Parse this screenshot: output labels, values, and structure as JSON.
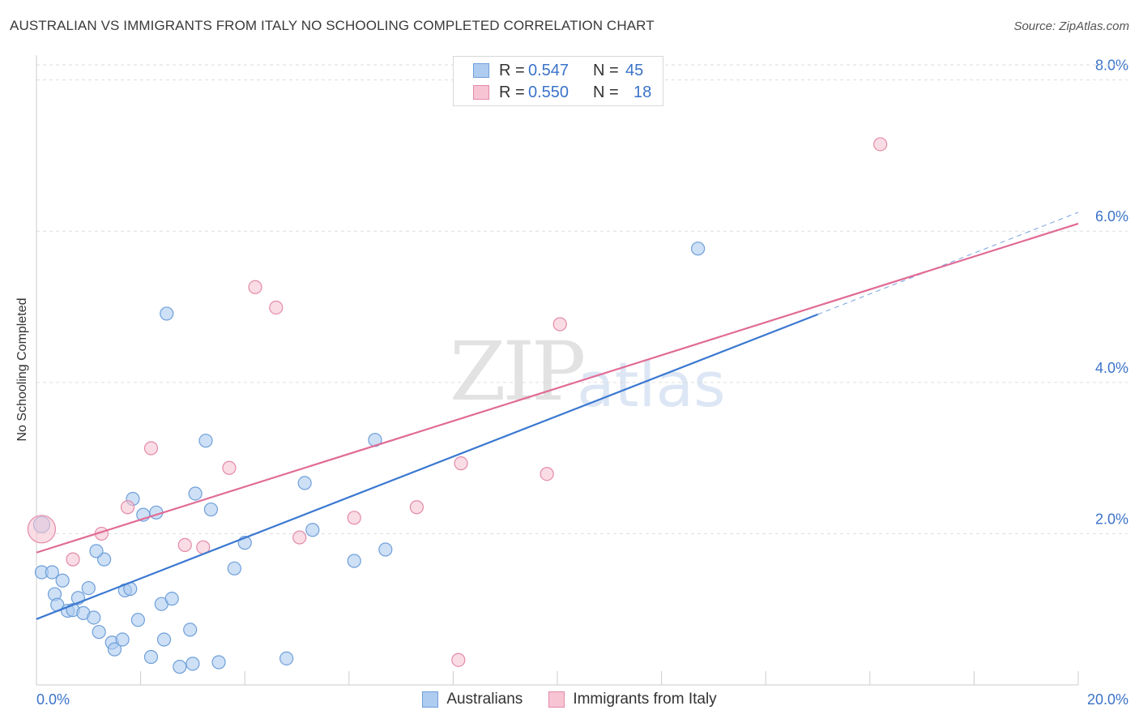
{
  "title": "AUSTRALIAN VS IMMIGRANTS FROM ITALY NO SCHOOLING COMPLETED CORRELATION CHART",
  "source": "Source: ZipAtlas.com",
  "watermark": {
    "zip": "ZIP",
    "atlas": "atlas"
  },
  "legend": {
    "rows": [
      {
        "r_label": "R =",
        "r_value": "0.547",
        "n_label": "N =",
        "n_value": "45",
        "color": "#aecbf0",
        "border": "#6e9fd9"
      },
      {
        "r_label": "R =",
        "r_value": "0.550",
        "n_label": "N =",
        "n_value": "18",
        "color": "#f7c4d3",
        "border": "#e38aa7"
      }
    ]
  },
  "bottom_legend": [
    {
      "label": "Australians",
      "color": "#aecbf0",
      "border": "#6e9fd9"
    },
    {
      "label": "Immigrants from Italy",
      "color": "#f7c4d3",
      "border": "#e38aa7"
    }
  ],
  "chart_data": {
    "type": "scatter",
    "title": "AUSTRALIAN VS IMMIGRANTS FROM ITALY NO SCHOOLING COMPLETED CORRELATION CHART",
    "xlabel": "",
    "ylabel": "No Schooling Completed",
    "xlim": [
      0,
      20
    ],
    "ylim": [
      0,
      8.2
    ],
    "x_tick_labels": [
      "0.0%",
      "20.0%"
    ],
    "y_ticks": [
      2,
      4,
      6,
      8
    ],
    "y_tick_labels": [
      "2.0%",
      "4.0%",
      "6.0%",
      "8.0%"
    ],
    "series": [
      {
        "name": "Australians",
        "color": "#6e9fd9",
        "fill": "#aecbf0",
        "points": [
          [
            0.1,
            2.12
          ],
          [
            0.1,
            1.49
          ],
          [
            0.3,
            1.49
          ],
          [
            0.5,
            1.38
          ],
          [
            0.35,
            1.2
          ],
          [
            0.4,
            1.06
          ],
          [
            0.6,
            0.98
          ],
          [
            0.7,
            0.99
          ],
          [
            0.8,
            1.15
          ],
          [
            0.9,
            0.95
          ],
          [
            1.0,
            1.28
          ],
          [
            1.1,
            0.89
          ],
          [
            1.2,
            0.7
          ],
          [
            1.3,
            1.66
          ],
          [
            1.15,
            1.77
          ],
          [
            1.45,
            0.56
          ],
          [
            1.5,
            0.47
          ],
          [
            1.65,
            0.6
          ],
          [
            1.7,
            1.25
          ],
          [
            1.8,
            1.27
          ],
          [
            1.85,
            2.46
          ],
          [
            1.95,
            0.86
          ],
          [
            2.05,
            2.25
          ],
          [
            2.2,
            0.37
          ],
          [
            2.3,
            2.28
          ],
          [
            2.4,
            1.07
          ],
          [
            2.45,
            0.6
          ],
          [
            2.6,
            1.14
          ],
          [
            2.75,
            0.24
          ],
          [
            2.95,
            0.73
          ],
          [
            3.0,
            0.28
          ],
          [
            3.05,
            2.53
          ],
          [
            3.25,
            3.23
          ],
          [
            3.35,
            2.32
          ],
          [
            3.5,
            0.3
          ],
          [
            3.8,
            1.54
          ],
          [
            4.0,
            1.88
          ],
          [
            4.8,
            0.35
          ],
          [
            5.15,
            2.67
          ],
          [
            5.3,
            2.05
          ],
          [
            6.1,
            1.64
          ],
          [
            6.5,
            3.24
          ],
          [
            6.7,
            1.79
          ],
          [
            2.5,
            4.91
          ],
          [
            12.7,
            5.77
          ]
        ]
      },
      {
        "name": "Immigrants from Italy",
        "color": "#e38aa7",
        "fill": "#f7c4d3",
        "points": [
          [
            0.1,
            2.06
          ],
          [
            0.7,
            1.66
          ],
          [
            1.25,
            2.0
          ],
          [
            1.75,
            2.35
          ],
          [
            2.2,
            3.13
          ],
          [
            2.85,
            1.85
          ],
          [
            3.2,
            1.82
          ],
          [
            3.7,
            2.87
          ],
          [
            4.2,
            5.26
          ],
          [
            4.6,
            4.99
          ],
          [
            5.05,
            1.95
          ],
          [
            6.1,
            2.21
          ],
          [
            7.3,
            2.35
          ],
          [
            8.1,
            0.33
          ],
          [
            8.15,
            2.93
          ],
          [
            9.8,
            2.79
          ],
          [
            10.05,
            4.77
          ],
          [
            16.2,
            7.15
          ]
        ]
      }
    ],
    "trendlines": [
      {
        "series": "Australians",
        "x_start": 0,
        "y_start": 0.87,
        "x_end": 15.0,
        "y_end": 4.9,
        "dashed_to_x": 20.0,
        "dashed_to_y": 6.25,
        "color": "#3b78d1"
      },
      {
        "series": "Immigrants from Italy",
        "x_start": 0,
        "y_start": 1.75,
        "x_end": 20.0,
        "y_end": 6.1,
        "color": "#e06b95"
      }
    ]
  }
}
